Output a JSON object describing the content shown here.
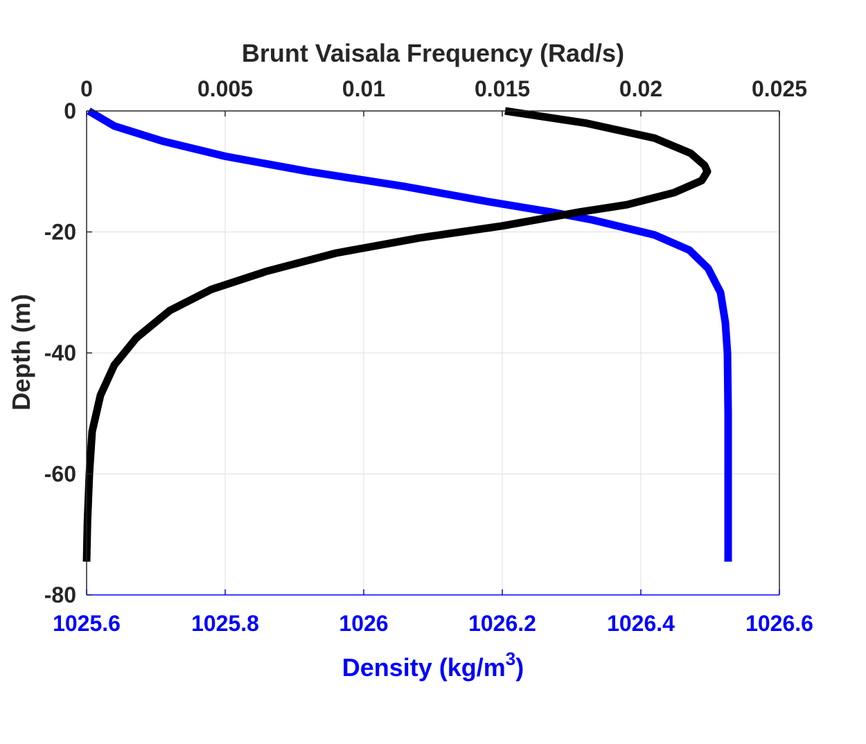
{
  "colors": {
    "density": "#0000ff",
    "frequency": "#000000",
    "axis_black": "#262626",
    "grid": "#dfdfdf"
  },
  "chart_data": {
    "type": "line",
    "title": "",
    "top_axis": {
      "label": "Brunt Vaisala Frequency (Rad/s)",
      "range": [
        0,
        0.025
      ],
      "ticks": [
        0,
        0.005,
        0.01,
        0.015,
        0.02,
        0.025
      ],
      "tick_labels": [
        "0",
        "0.005",
        "0.01",
        "0.015",
        "0.02",
        "0.025"
      ]
    },
    "bottom_axis": {
      "label_text": "Density (kg/m",
      "label_superscript": "3",
      "label_close": ")",
      "range": [
        1025.6,
        1026.6
      ],
      "ticks": [
        1025.6,
        1025.8,
        1026,
        1026.2,
        1026.4,
        1026.6
      ],
      "tick_labels": [
        "1025.6",
        "1025.8",
        "1026",
        "1026.2",
        "1026.4",
        "1026.6"
      ]
    },
    "left_axis": {
      "label": "Depth (m)",
      "range": [
        -80,
        0
      ],
      "ticks": [
        0,
        -20,
        -40,
        -60,
        -80
      ],
      "tick_labels": [
        "0",
        "-20",
        "-40",
        "-60",
        "-80"
      ]
    },
    "grid": true,
    "series": [
      {
        "key": "density",
        "axis": "bottom",
        "color": "#0000ff",
        "points": [
          [
            1025.603,
            0
          ],
          [
            1025.64,
            -2.5
          ],
          [
            1025.71,
            -5
          ],
          [
            1025.8,
            -7.5
          ],
          [
            1025.92,
            -10
          ],
          [
            1026.06,
            -12.5
          ],
          [
            1026.18,
            -15
          ],
          [
            1026.27,
            -16.7
          ],
          [
            1026.33,
            -18
          ],
          [
            1026.42,
            -20.5
          ],
          [
            1026.47,
            -23
          ],
          [
            1026.497,
            -26
          ],
          [
            1026.515,
            -30
          ],
          [
            1026.522,
            -35
          ],
          [
            1026.525,
            -40
          ],
          [
            1026.526,
            -50
          ],
          [
            1026.526,
            -60
          ],
          [
            1026.526,
            -74.5
          ]
        ]
      },
      {
        "key": "frequency",
        "axis": "top",
        "color": "#000000",
        "points": [
          [
            0.0151,
            0
          ],
          [
            0.018,
            -2
          ],
          [
            0.0205,
            -4.5
          ],
          [
            0.0218,
            -7
          ],
          [
            0.0223,
            -9
          ],
          [
            0.0224,
            -10
          ],
          [
            0.0222,
            -11.5
          ],
          [
            0.0212,
            -13.5
          ],
          [
            0.0195,
            -15.5
          ],
          [
            0.0178,
            -16.7
          ],
          [
            0.015,
            -19
          ],
          [
            0.012,
            -21
          ],
          [
            0.009,
            -23.5
          ],
          [
            0.0065,
            -26.5
          ],
          [
            0.0045,
            -29.5
          ],
          [
            0.003,
            -33
          ],
          [
            0.0018,
            -37.5
          ],
          [
            0.001,
            -42
          ],
          [
            0.0005,
            -47
          ],
          [
            0.0002,
            -53
          ],
          [
            0.0001,
            -60
          ],
          [
            3e-05,
            -68
          ],
          [
            0.0,
            -74.5
          ]
        ]
      }
    ]
  }
}
